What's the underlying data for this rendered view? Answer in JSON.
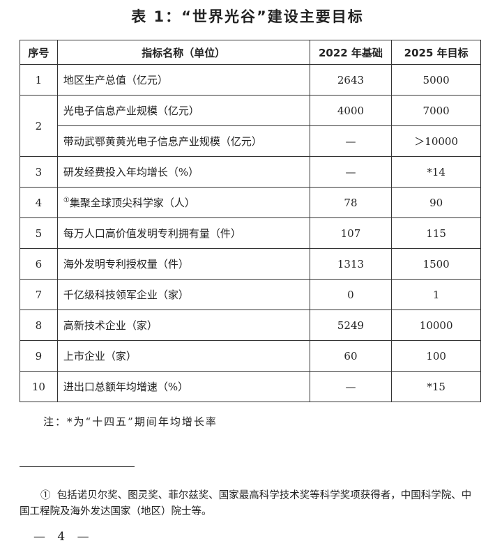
{
  "title": "表 1：“世界光谷”建设主要目标",
  "table": {
    "headers": [
      "序号",
      "指标名称（单位）",
      "2022 年基础",
      "2025 年目标"
    ],
    "rows": [
      {
        "no": "1",
        "name": "地区生产总值（亿元）",
        "base": "2643",
        "target": "5000"
      },
      {
        "no": "2",
        "name": "光电子信息产业规模（亿元）",
        "base": "4000",
        "target": "7000"
      },
      {
        "no": "",
        "name": "带动武鄂黄黄光电子信息产业规模（亿元）",
        "base": "—",
        "target": "＞10000"
      },
      {
        "no": "3",
        "name": "研发经费投入年均增长（%）",
        "base": "—",
        "target": "*14"
      },
      {
        "no": "4",
        "mark": "①",
        "name": "集聚全球顶尖科学家（人）",
        "base": "78",
        "target": "90"
      },
      {
        "no": "5",
        "name": "每万人口高价值发明专利拥有量（件）",
        "base": "107",
        "target": "115"
      },
      {
        "no": "6",
        "name": "海外发明专利授权量（件）",
        "base": "1313",
        "target": "1500"
      },
      {
        "no": "7",
        "name": "千亿级科技领军企业（家）",
        "base": "0",
        "target": "1"
      },
      {
        "no": "8",
        "name": "高新技术企业（家）",
        "base": "5249",
        "target": "10000"
      },
      {
        "no": "9",
        "name": "上市企业（家）",
        "base": "60",
        "target": "100"
      },
      {
        "no": "10",
        "name": "进出口总额年均增速（%）",
        "base": "—",
        "target": "*15"
      }
    ]
  },
  "note": "注：*为“十四五”期间年均增长率",
  "footnote": {
    "mark": "①",
    "text": "包括诺贝尔奖、图灵奖、菲尔兹奖、国家最高科学技术奖等科学奖项获得者，中国科学院、中国工程院及海外发达国家（地区）院士等。"
  },
  "page_number": "— 4 —"
}
